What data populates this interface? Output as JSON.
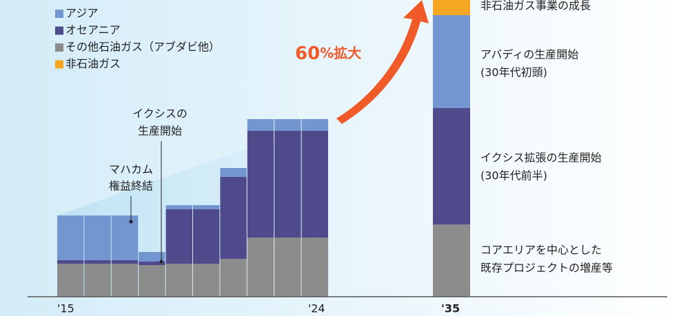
{
  "chart_data": {
    "type": "stacked_bar",
    "categories": [
      "'15",
      null,
      null,
      null,
      null,
      null,
      null,
      null,
      null,
      "'24",
      "'35"
    ],
    "series": [
      {
        "name": "その他石油ガス（アブダビ他）",
        "color": "#8c8c8c",
        "values": [
          48,
          48,
          48,
          46,
          48,
          48,
          55,
          86,
          86,
          86,
          105
        ]
      },
      {
        "name": "オセアニア",
        "color": "#4f4a8c",
        "values": [
          5,
          5,
          5,
          5,
          79,
          79,
          119,
          155,
          155,
          155,
          169
        ]
      },
      {
        "name": "アジア",
        "color": "#7496d0",
        "values": [
          65,
          65,
          65,
          14,
          6,
          6,
          13,
          17,
          17,
          17,
          135
        ]
      },
      {
        "name": "非石油ガス",
        "color": "#f5a623",
        "values": [
          null,
          null,
          null,
          null,
          null,
          null,
          null,
          null,
          null,
          null,
          22
        ]
      }
    ],
    "legend_order": [
      2,
      1,
      0,
      3
    ],
    "ylim": [
      0,
      431
    ],
    "annotations": {
      "ichthys_start": [
        "イクシスの",
        "生産開始"
      ],
      "mahakam_end": [
        "マハカム",
        "権益終結"
      ],
      "growth_number": "60",
      "growth_text": "%拡大",
      "non_oil": "非石油ガス事業の成長",
      "abadi": [
        "アバディの生産開始",
        "(30年代初頭)"
      ],
      "ichthys_expansion": [
        "イクシス拡張の生産開始",
        "(30年代前半)"
      ],
      "core_area": [
        "コアエリアを中心とした",
        "既存プロジェクトの増産等"
      ]
    }
  }
}
